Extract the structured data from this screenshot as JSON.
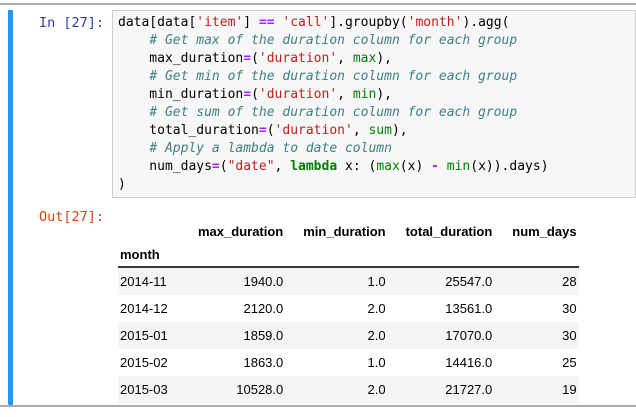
{
  "colors": {
    "selected_bar": "#2196F3",
    "divider": "#ababab",
    "input_prompt": "#303F9F",
    "output_prompt": "#D84315",
    "code_bg": "#f7f7f7",
    "code_border": "#cfcfcf",
    "string": "#BA2121",
    "operator": "#AA22FF",
    "builtin": "#008000",
    "keyword": "#008000",
    "comment": "#408080",
    "row_stripe": "#f5f5f5"
  },
  "input": {
    "prompt": "In [27]:",
    "code_lines": [
      [
        [
          "p",
          "data[data["
        ],
        [
          "s",
          "'item'"
        ],
        [
          "p",
          "] "
        ],
        [
          "o",
          "=="
        ],
        [
          "p",
          " "
        ],
        [
          "s",
          "'call'"
        ],
        [
          "p",
          "].groupby("
        ],
        [
          "s",
          "'month'"
        ],
        [
          "p",
          ").agg("
        ]
      ],
      [
        [
          "p",
          "    "
        ],
        [
          "c",
          "# Get max of the duration column for each group"
        ]
      ],
      [
        [
          "p",
          "    max_duration"
        ],
        [
          "o",
          "="
        ],
        [
          "p",
          "("
        ],
        [
          "s",
          "'duration'"
        ],
        [
          "p",
          ", "
        ],
        [
          "b",
          "max"
        ],
        [
          "p",
          "),"
        ]
      ],
      [
        [
          "p",
          "    "
        ],
        [
          "c",
          "# Get min of the duration column for each group"
        ]
      ],
      [
        [
          "p",
          "    min_duration"
        ],
        [
          "o",
          "="
        ],
        [
          "p",
          "("
        ],
        [
          "s",
          "'duration'"
        ],
        [
          "p",
          ", "
        ],
        [
          "b",
          "min"
        ],
        [
          "p",
          "),"
        ]
      ],
      [
        [
          "p",
          "    "
        ],
        [
          "c",
          "# Get sum of the duration column for each group"
        ]
      ],
      [
        [
          "p",
          "    total_duration"
        ],
        [
          "o",
          "="
        ],
        [
          "p",
          "("
        ],
        [
          "s",
          "'duration'"
        ],
        [
          "p",
          ", "
        ],
        [
          "b",
          "sum"
        ],
        [
          "p",
          "),"
        ]
      ],
      [
        [
          "p",
          "    "
        ],
        [
          "c",
          "# Apply a lambda to date column"
        ]
      ],
      [
        [
          "p",
          "    num_days"
        ],
        [
          "o",
          "="
        ],
        [
          "p",
          "("
        ],
        [
          "s",
          "\"date\""
        ],
        [
          "p",
          ", "
        ],
        [
          "k",
          "lambda"
        ],
        [
          "p",
          " x: ("
        ],
        [
          "b",
          "max"
        ],
        [
          "p",
          "(x) "
        ],
        [
          "o",
          "-"
        ],
        [
          "p",
          " "
        ],
        [
          "b",
          "min"
        ],
        [
          "p",
          "(x)).days)"
        ]
      ],
      [
        [
          "p",
          ")"
        ]
      ]
    ]
  },
  "output": {
    "prompt": "Out[27]:",
    "table": {
      "columns": [
        "max_duration",
        "min_duration",
        "total_duration",
        "num_days"
      ],
      "index_name": "month",
      "rows": [
        {
          "index": "2014-11",
          "values": [
            "1940.0",
            "1.0",
            "25547.0",
            "28"
          ]
        },
        {
          "index": "2014-12",
          "values": [
            "2120.0",
            "2.0",
            "13561.0",
            "30"
          ]
        },
        {
          "index": "2015-01",
          "values": [
            "1859.0",
            "2.0",
            "17070.0",
            "30"
          ]
        },
        {
          "index": "2015-02",
          "values": [
            "1863.0",
            "1.0",
            "14416.0",
            "25"
          ]
        },
        {
          "index": "2015-03",
          "values": [
            "10528.0",
            "2.0",
            "21727.0",
            "19"
          ]
        }
      ]
    }
  }
}
